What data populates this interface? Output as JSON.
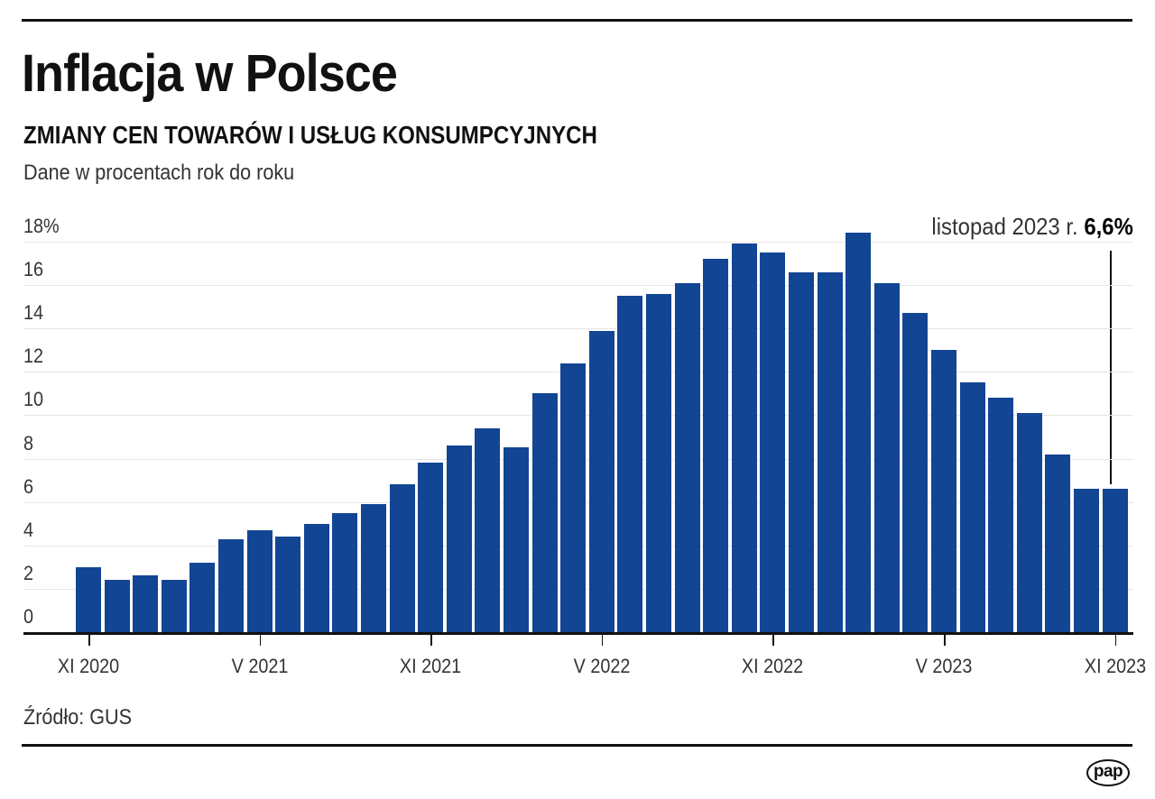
{
  "header": {
    "title": "Inflacja w Polsce",
    "subtitle": "ZMIANY CEN TOWARÓW I USŁUG KONSUMPCYJNYCH",
    "note": "Dane w procentach rok do roku"
  },
  "callout": {
    "label": "listopad 2023 r.",
    "value": "6,6%"
  },
  "footer": {
    "source": "Źródło: GUS",
    "logo": "pap"
  },
  "colors": {
    "bar": "#124594",
    "grid": "#e6e6e6",
    "axis": "#111111"
  },
  "chart_data": {
    "type": "bar",
    "title": "Inflacja w Polsce",
    "subtitle": "ZMIANY CEN TOWARÓW I USŁUG KONSUMPCYJNYCH",
    "ylabel": "Dane w procentach rok do roku",
    "xlabel": "",
    "ylim": [
      0,
      18
    ],
    "yticks": [
      "0",
      "2",
      "4",
      "6",
      "8",
      "10",
      "12",
      "14",
      "16",
      "18%"
    ],
    "xtick_labels": [
      {
        "label": "XI 2020",
        "index": 0
      },
      {
        "label": "V 2021",
        "index": 6
      },
      {
        "label": "XI 2021",
        "index": 12
      },
      {
        "label": "V 2022",
        "index": 18
      },
      {
        "label": "XI 2022",
        "index": 24
      },
      {
        "label": "V 2023",
        "index": 30
      },
      {
        "label": "XI 2023",
        "index": 36
      }
    ],
    "grid": true,
    "legend": "none",
    "annotation": "listopad 2023 r. 6,6%",
    "categories": [
      "XI 2020",
      "XII 2020",
      "I 2021",
      "II 2021",
      "III 2021",
      "IV 2021",
      "V 2021",
      "VI 2021",
      "VII 2021",
      "VIII 2021",
      "IX 2021",
      "X 2021",
      "XI 2021",
      "XII 2021",
      "I 2022",
      "II 2022",
      "III 2022",
      "IV 2022",
      "V 2022",
      "VI 2022",
      "VII 2022",
      "VIII 2022",
      "IX 2022",
      "X 2022",
      "XI 2022",
      "XII 2022",
      "I 2023",
      "II 2023",
      "III 2023",
      "IV 2023",
      "V 2023",
      "VI 2023",
      "VII 2023",
      "VIII 2023",
      "IX 2023",
      "X 2023",
      "XI 2023"
    ],
    "values": [
      3.0,
      2.4,
      2.6,
      2.4,
      3.2,
      4.3,
      4.7,
      4.4,
      5.0,
      5.5,
      5.9,
      6.8,
      7.8,
      8.6,
      9.4,
      8.5,
      11.0,
      12.4,
      13.9,
      15.5,
      15.6,
      16.1,
      17.2,
      17.9,
      17.5,
      16.6,
      16.6,
      18.4,
      16.1,
      14.7,
      13.0,
      11.5,
      10.8,
      10.1,
      8.2,
      6.6,
      6.6
    ]
  }
}
